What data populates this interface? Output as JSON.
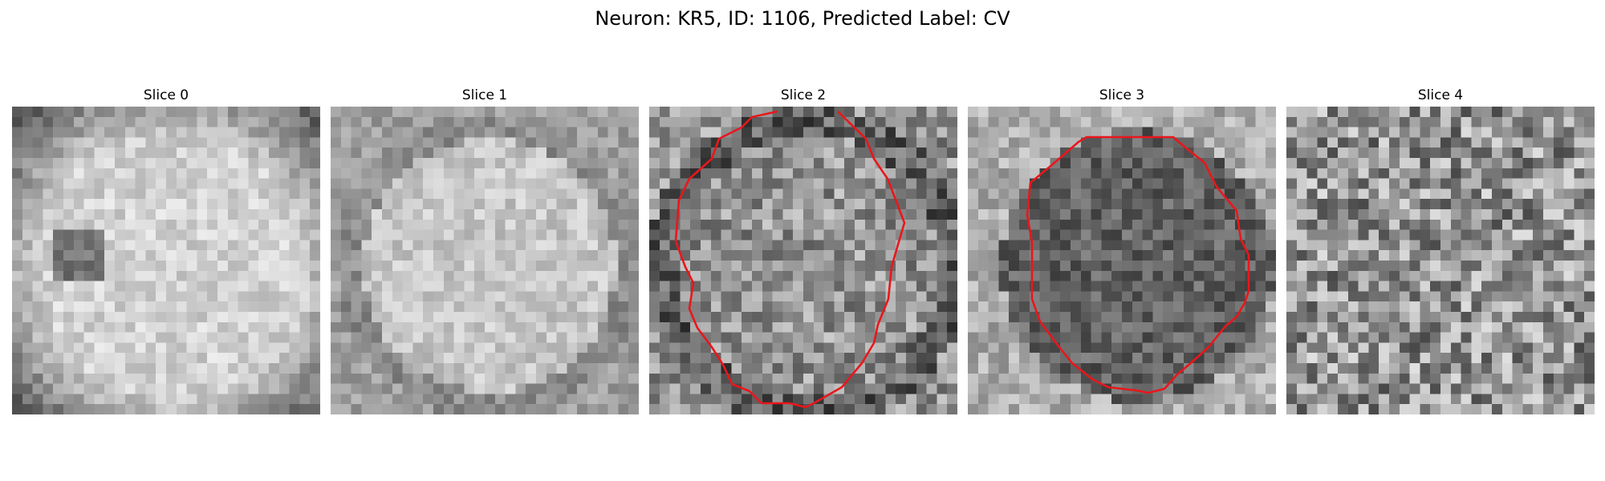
{
  "figure": {
    "title": "Neuron: KR5, ID: 1106, Predicted Label: CV"
  },
  "colormap": "gray",
  "contour_color": "#e8171c",
  "panels": [
    {
      "title": "Slice 0",
      "has_contour": false
    },
    {
      "title": "Slice 1",
      "has_contour": false
    },
    {
      "title": "Slice 2",
      "has_contour": true
    },
    {
      "title": "Slice 3",
      "has_contour": true
    },
    {
      "title": "Slice 4",
      "has_contour": false
    }
  ]
}
